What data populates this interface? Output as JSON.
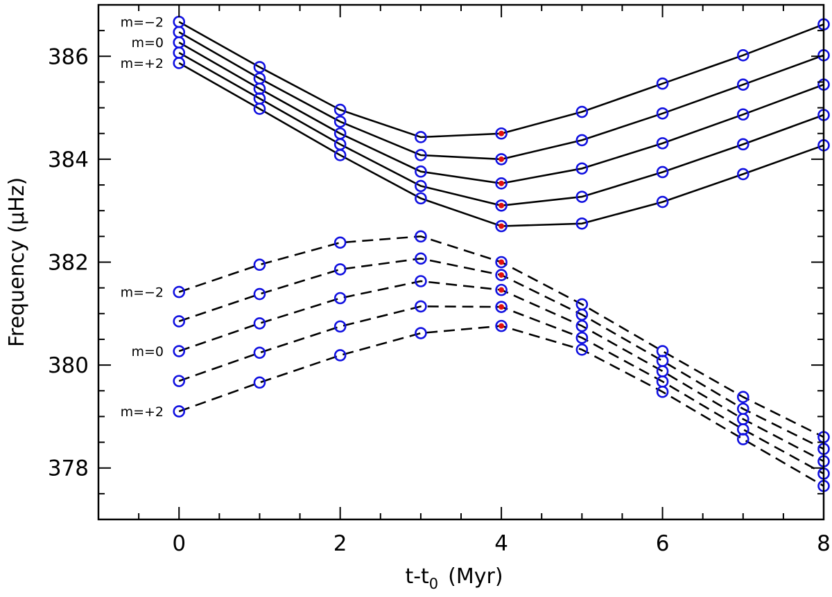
{
  "chart_data": {
    "type": "line",
    "xlabel": "t-t",
    "xlabel_subscript": "0",
    "xlabel_unit": "(Myr)",
    "ylabel": "Frequency (μHz)",
    "xlim": [
      -1,
      8
    ],
    "ylim": [
      377,
      387
    ],
    "x_ticks": [
      0,
      2,
      4,
      6,
      8
    ],
    "y_ticks": [
      378,
      380,
      382,
      384,
      386
    ],
    "x_minor_step": 0.5,
    "y_minor_step": 0.5,
    "grid": false,
    "marker_color": "#1010e0",
    "highlight_color": "#e01010",
    "line_color": "#000000",
    "highlight_x": 4,
    "x": [
      0,
      1,
      2,
      3,
      4,
      5,
      6,
      7,
      8
    ],
    "series": [
      {
        "group": "upper",
        "m": -2,
        "style": "solid",
        "values": [
          386.67,
          385.79,
          384.96,
          384.43,
          384.5,
          384.92,
          385.47,
          386.02,
          386.62
        ]
      },
      {
        "group": "upper",
        "m": -1,
        "style": "solid",
        "values": [
          386.47,
          385.57,
          384.73,
          384.08,
          384.0,
          384.37,
          384.89,
          385.45,
          386.02
        ]
      },
      {
        "group": "upper",
        "m": 0,
        "style": "solid",
        "values": [
          386.27,
          385.37,
          384.5,
          383.76,
          383.53,
          383.82,
          384.31,
          384.87,
          385.45
        ]
      },
      {
        "group": "upper",
        "m": 1,
        "style": "solid",
        "values": [
          386.07,
          385.18,
          384.29,
          383.48,
          383.1,
          383.27,
          383.75,
          384.29,
          384.86
        ]
      },
      {
        "group": "upper",
        "m": 2,
        "style": "solid",
        "values": [
          385.87,
          384.98,
          384.08,
          383.24,
          382.7,
          382.75,
          383.17,
          383.71,
          384.27
        ]
      },
      {
        "group": "lower",
        "m": -2,
        "style": "dashed",
        "values": [
          381.42,
          381.95,
          382.38,
          382.5,
          382.0,
          381.18,
          380.27,
          379.38,
          378.6
        ]
      },
      {
        "group": "lower",
        "m": -1,
        "style": "dashed",
        "values": [
          380.85,
          381.38,
          381.86,
          382.07,
          381.75,
          380.98,
          380.08,
          379.15,
          378.37
        ]
      },
      {
        "group": "lower",
        "m": 0,
        "style": "dashed",
        "values": [
          380.27,
          380.81,
          381.3,
          381.63,
          381.46,
          380.76,
          379.88,
          378.95,
          378.13
        ]
      },
      {
        "group": "lower",
        "m": 1,
        "style": "dashed",
        "values": [
          379.69,
          380.24,
          380.75,
          381.14,
          381.13,
          380.53,
          379.68,
          378.75,
          377.89
        ]
      },
      {
        "group": "lower",
        "m": 2,
        "style": "dashed",
        "values": [
          379.1,
          379.66,
          380.19,
          380.62,
          380.76,
          380.3,
          379.48,
          378.56,
          377.65
        ]
      }
    ],
    "annotations": [
      {
        "text": "m=−2",
        "series_group": "upper",
        "m": -2
      },
      {
        "text": "m=0",
        "series_group": "upper",
        "m": 0
      },
      {
        "text": "m=+2",
        "series_group": "upper",
        "m": 2
      },
      {
        "text": "m=−2",
        "series_group": "lower",
        "m": -2
      },
      {
        "text": "m=0",
        "series_group": "lower",
        "m": 0
      },
      {
        "text": "m=+2",
        "series_group": "lower",
        "m": 2
      }
    ]
  }
}
